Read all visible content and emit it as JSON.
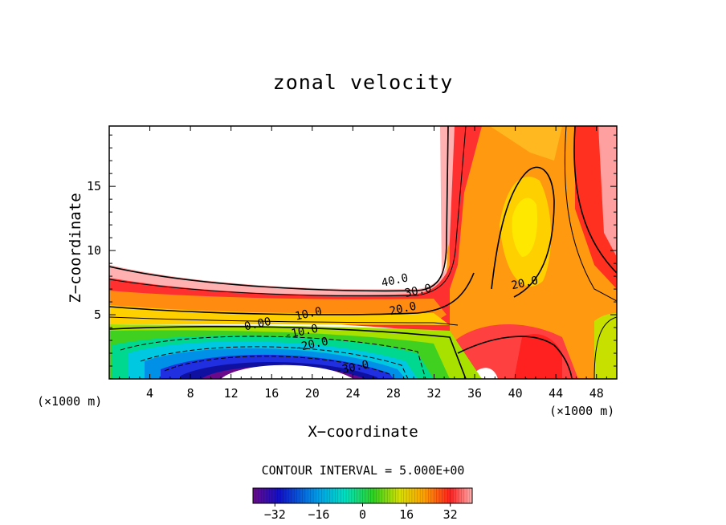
{
  "chart_data": {
    "type": "heatmap",
    "title": "zonal velocity",
    "xlabel": "X−coordinate",
    "ylabel": "Z−coordinate",
    "x_unit_left": "(×1000 m)",
    "x_unit_right": "(×1000 m)",
    "xlim": [
      0,
      50
    ],
    "ylim": [
      0,
      19.7
    ],
    "x_ticks": [
      4,
      8,
      12,
      16,
      20,
      24,
      28,
      32,
      36,
      40,
      44,
      48
    ],
    "y_ticks": [
      5,
      10,
      15
    ],
    "contour_interval_text": "CONTOUR INTERVAL = 5.000E+00",
    "contour_labels": [
      {
        "text": "40.0",
        "x": 28.2,
        "z": 7.4
      },
      {
        "text": "30.0",
        "x": 30.5,
        "z": 6.6
      },
      {
        "text": "20.0",
        "x": 29.0,
        "z": 5.2
      },
      {
        "text": "20.0",
        "x": 41.0,
        "z": 7.2
      },
      {
        "text": "10.0",
        "x": 19.7,
        "z": 4.8
      },
      {
        "text": "0.00",
        "x": 14.7,
        "z": 4.0
      },
      {
        "text": "-10.0",
        "x": 19.0,
        "z": 3.4
      },
      {
        "text": "-20.0",
        "x": 20.0,
        "z": 2.4
      },
      {
        "text": "-30.0",
        "x": 24.0,
        "z": 0.6
      }
    ],
    "colorbar": {
      "range": [
        -40,
        40
      ],
      "tick_values": [
        -32,
        -16,
        0,
        16,
        32
      ],
      "tick_labels": [
        "−32",
        "−16",
        "0",
        "16",
        "32"
      ]
    }
  }
}
